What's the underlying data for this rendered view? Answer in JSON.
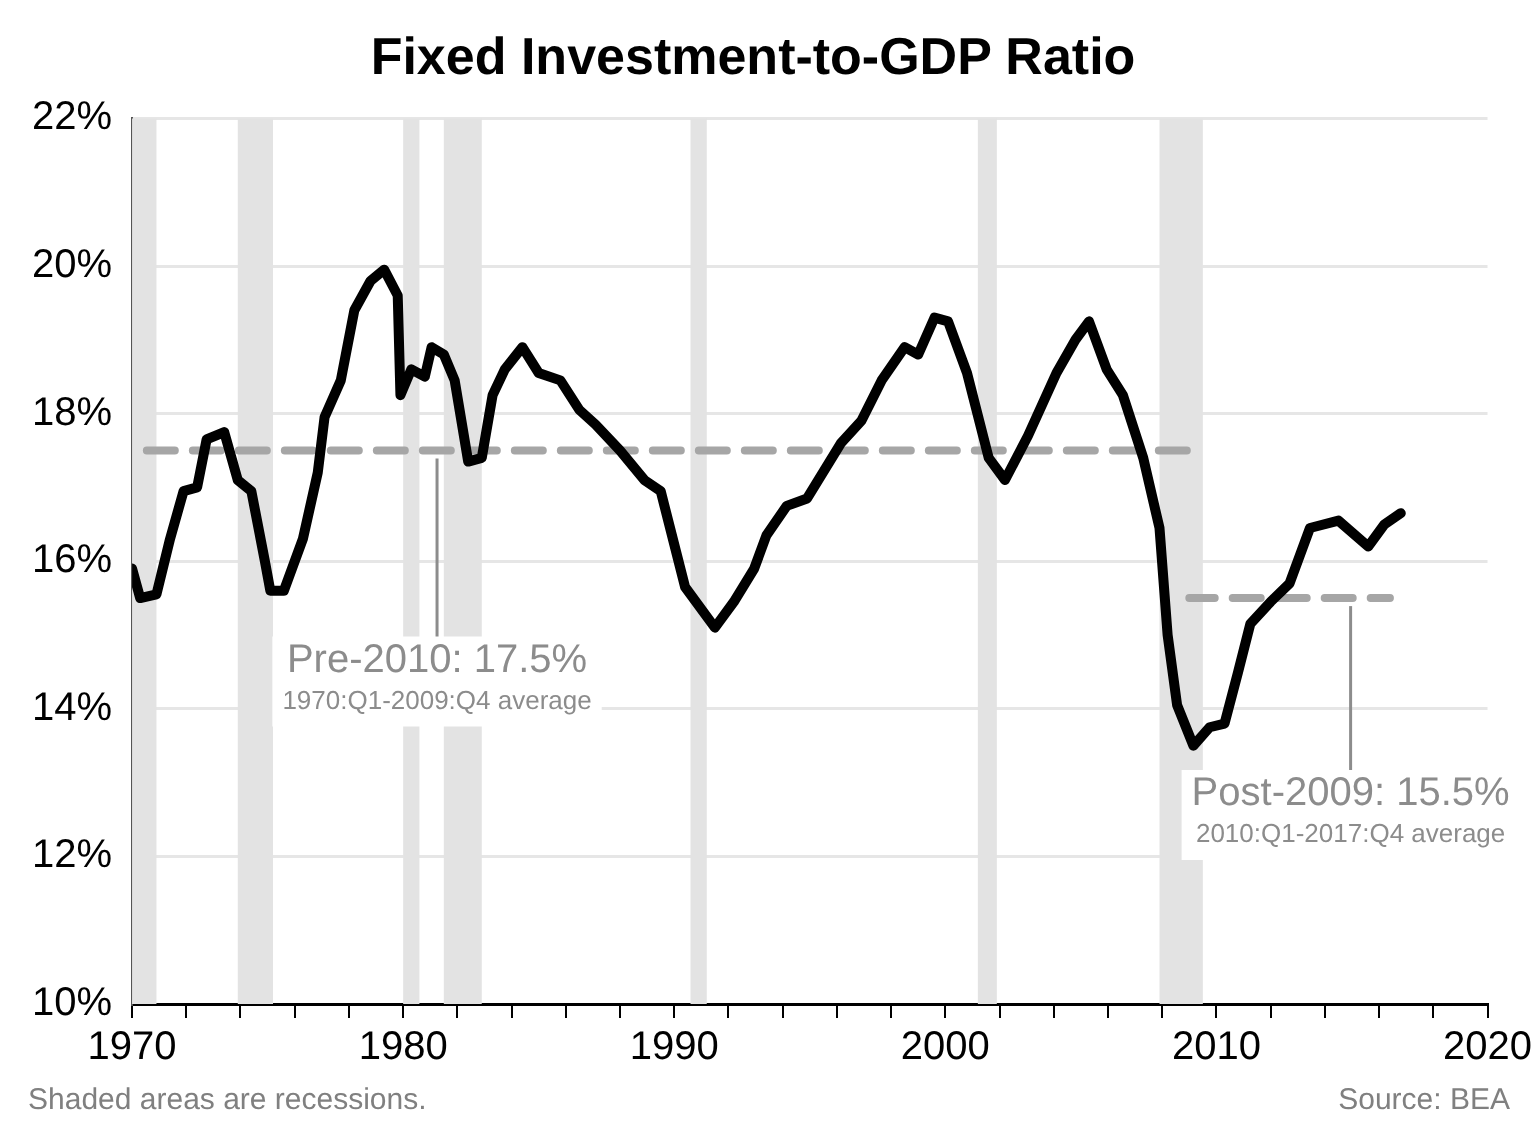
{
  "chart_data": {
    "type": "line",
    "title": "Fixed Investment-to-GDP Ratio",
    "xlim": [
      1970,
      2020
    ],
    "xticks": [
      1970,
      {
        "value": 1972,
        "label": null
      },
      {
        "value": 1974,
        "label": null
      },
      {
        "value": 1976,
        "label": null
      },
      {
        "value": 1978,
        "label": null
      },
      1980,
      {
        "value": 1982,
        "label": null
      },
      {
        "value": 1984,
        "label": null
      },
      {
        "value": 1986,
        "label": null
      },
      {
        "value": 1988,
        "label": null
      },
      1990,
      {
        "value": 1992,
        "label": null
      },
      {
        "value": 1994,
        "label": null
      },
      {
        "value": 1996,
        "label": null
      },
      {
        "value": 1998,
        "label": null
      },
      2000,
      {
        "value": 2002,
        "label": null
      },
      {
        "value": 2004,
        "label": null
      },
      {
        "value": 2006,
        "label": null
      },
      {
        "value": 2008,
        "label": null
      },
      2010,
      {
        "value": 2012,
        "label": null
      },
      {
        "value": 2014,
        "label": null
      },
      {
        "value": 2016,
        "label": null
      },
      {
        "value": 2018,
        "label": null
      },
      2020
    ],
    "ylim": [
      10,
      22
    ],
    "yticks": [
      {
        "value": 10,
        "label": "10%"
      },
      {
        "value": 12,
        "label": "12%"
      },
      {
        "value": 14,
        "label": "14%"
      },
      {
        "value": 16,
        "label": "16%"
      },
      {
        "value": 18,
        "label": "18%"
      },
      {
        "value": 20,
        "label": "20%"
      },
      {
        "value": 22,
        "label": "22%"
      }
    ],
    "grid": "y",
    "legend": false,
    "marker": "none",
    "series": [
      {
        "color": "#000000",
        "line_style": "solid",
        "x": [
          1970,
          1970.3,
          1970.9,
          1971.4,
          1971.9,
          1972.4,
          1972.75,
          1973.4,
          1973.9,
          1974.4,
          1974.9,
          1975.1,
          1975.6,
          1976.3,
          1976.85,
          1977.1,
          1977.7,
          1978.2,
          1978.8,
          1979.3,
          1979.8,
          1979.9,
          1980.3,
          1980.8,
          1981.05,
          1981.5,
          1981.9,
          1982.4,
          1982.9,
          1983.3,
          1983.75,
          1984.4,
          1985,
          1985.8,
          1986.5,
          1987.1,
          1988,
          1988.9,
          1989.5,
          1990.4,
          1991.5,
          1992.2,
          1992.95,
          1993.4,
          1994.15,
          1994.9,
          1996.15,
          1996.9,
          1997.65,
          1998.5,
          1999,
          1999.6,
          2000.1,
          2000.8,
          2001.6,
          2002.2,
          2003.05,
          2004.1,
          2004.8,
          2005.3,
          2005.95,
          2006.55,
          2007.3,
          2007.9,
          2008.2,
          2008.55,
          2009.15,
          2009.75,
          2010.3,
          2010.8,
          2011.25,
          2012,
          2012.7,
          2013.45,
          2014.5,
          2015.6,
          2016.2,
          2016.8
        ],
        "values": [
          15.9,
          15.5,
          15.55,
          16.3,
          16.95,
          17.0,
          17.65,
          17.75,
          17.1,
          16.95,
          16.0,
          15.6,
          15.6,
          16.3,
          17.2,
          17.95,
          18.45,
          19.4,
          19.8,
          19.95,
          19.6,
          18.25,
          18.6,
          18.5,
          18.9,
          18.8,
          18.45,
          17.35,
          17.4,
          18.25,
          18.6,
          18.9,
          18.55,
          18.45,
          18.05,
          17.85,
          17.5,
          17.1,
          16.95,
          15.65,
          15.1,
          15.45,
          15.9,
          16.35,
          16.75,
          16.85,
          17.6,
          17.9,
          18.45,
          18.9,
          18.8,
          19.3,
          19.25,
          18.55,
          17.4,
          17.1,
          17.7,
          18.55,
          19.0,
          19.25,
          18.6,
          18.25,
          17.4,
          16.45,
          15.0,
          14.05,
          13.5,
          13.75,
          13.8,
          14.5,
          15.15,
          15.45,
          15.7,
          16.45,
          16.55,
          16.2,
          16.5,
          16.65
        ]
      },
      {
        "color": "#a6a6a6",
        "line_style": "dashed",
        "x": [
          1970,
          2009
        ],
        "values": [
          17.5,
          17.5
        ]
      },
      {
        "color": "#a6a6a6",
        "line_style": "dashed",
        "x": [
          2009,
          2016.4
        ],
        "values": [
          15.5,
          15.5
        ]
      }
    ],
    "bands": [
      {
        "axis": "x",
        "from": 1970,
        "to": 1970.9,
        "color": "#e3e3e3"
      },
      {
        "axis": "x",
        "from": 1973.9,
        "to": 1975.2,
        "color": "#e3e3e3"
      },
      {
        "axis": "x",
        "from": 1980,
        "to": 1980.6,
        "color": "#e3e3e3"
      },
      {
        "axis": "x",
        "from": 1981.5,
        "to": 1982.9,
        "color": "#e3e3e3"
      },
      {
        "axis": "x",
        "from": 1990.6,
        "to": 1991.2,
        "color": "#e3e3e3"
      },
      {
        "axis": "x",
        "from": 2001.2,
        "to": 2001.9,
        "color": "#e3e3e3"
      },
      {
        "axis": "x",
        "from": 2007.9,
        "to": 2009.5,
        "color": "#e3e3e3"
      }
    ],
    "annotations": [
      {
        "text": "Pre-2010: 17.5%",
        "x": 1981.25,
        "y": 17.5
      },
      "1970:Q1-2009:Q4 average",
      {
        "text": "Post-2009: 15.5%",
        "x": 2014.95,
        "y": 15.5
      },
      "2010:Q1-2017:Q4 average",
      "Shaded areas are recessions.",
      "Source: BEA"
    ]
  }
}
